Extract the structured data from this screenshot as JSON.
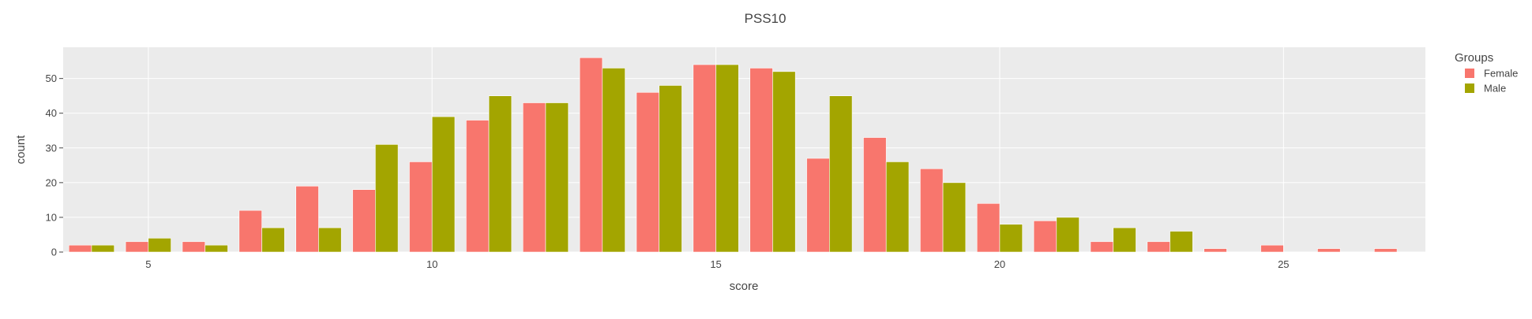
{
  "chart_data": {
    "type": "bar",
    "title": "PSS10",
    "xlabel": "score",
    "ylabel": "count",
    "xlim": [
      3.5,
      27.5
    ],
    "ylim": [
      0,
      59
    ],
    "x_ticks": [
      5,
      10,
      15,
      20,
      25
    ],
    "y_ticks": [
      0,
      10,
      20,
      30,
      40,
      50
    ],
    "grid": true,
    "legend": {
      "title": "Groups",
      "position": "right"
    },
    "x": [
      4,
      5,
      6,
      7,
      8,
      9,
      10,
      11,
      12,
      13,
      14,
      15,
      16,
      17,
      18,
      19,
      20,
      21,
      22,
      23,
      24,
      25,
      26,
      27
    ],
    "series": [
      {
        "name": "Female",
        "color": "#F8766D",
        "values": [
          2,
          3,
          3,
          12,
          19,
          18,
          26,
          38,
          43,
          56,
          46,
          54,
          53,
          27,
          33,
          24,
          14,
          9,
          3,
          3,
          1,
          2,
          1,
          1
        ]
      },
      {
        "name": "Male",
        "color": "#A3A500",
        "values": [
          2,
          4,
          2,
          7,
          7,
          31,
          39,
          45,
          43,
          53,
          48,
          54,
          52,
          45,
          26,
          20,
          8,
          10,
          7,
          6,
          0,
          0,
          0,
          0
        ]
      }
    ]
  }
}
